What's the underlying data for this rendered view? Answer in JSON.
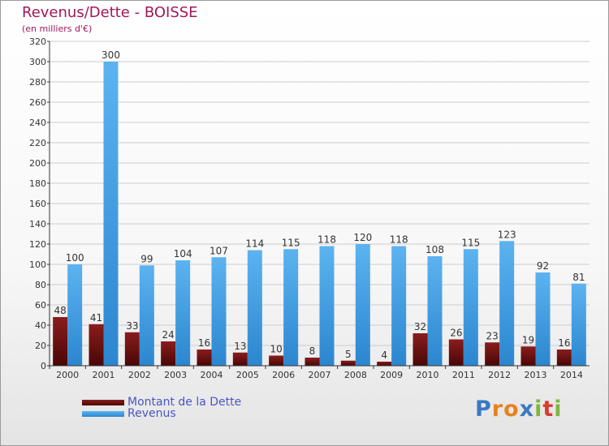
{
  "title": "Revenus/Dette - BOISSE",
  "subtitle": "(en milliers d'€)",
  "colors": {
    "dette": "#6b0c0c",
    "revenus": "#3a9ae0",
    "grid": "#cccccc",
    "axis": "#333333",
    "title": "#a0185a",
    "legend": "#4a56c4"
  },
  "legend": {
    "dette": "Montant de la Dette",
    "revenus": "Revenus"
  },
  "logo": {
    "text": "Proxiti",
    "letters": [
      "P",
      "r",
      "o",
      "x",
      "i",
      "t",
      "i"
    ],
    "colors": [
      "#3b78c4",
      "#e8821e",
      "#e8821e",
      "#3b78c4",
      "#7fb63e",
      "#d93b2f",
      "#7fb63e"
    ]
  },
  "chart_data": {
    "type": "bar",
    "title": "Revenus/Dette - BOISSE",
    "ylabel": "(en milliers d'€)",
    "xlabel": "",
    "ylim": [
      0,
      320
    ],
    "yticks": [
      0,
      20,
      40,
      60,
      80,
      100,
      120,
      140,
      160,
      180,
      200,
      220,
      240,
      260,
      280,
      300,
      320
    ],
    "categories": [
      "2000",
      "2001",
      "2002",
      "2003",
      "2004",
      "2005",
      "2006",
      "2007",
      "2008",
      "2009",
      "2010",
      "2011",
      "2012",
      "2013",
      "2014"
    ],
    "series": [
      {
        "name": "Montant de la Dette",
        "values": [
          48,
          41,
          33,
          24,
          16,
          13,
          10,
          8,
          5,
          4,
          32,
          26,
          23,
          19,
          16
        ]
      },
      {
        "name": "Revenus",
        "values": [
          100,
          300,
          99,
          104,
          107,
          114,
          115,
          118,
          120,
          118,
          108,
          115,
          123,
          92,
          81
        ]
      }
    ],
    "grid": true,
    "legend_position": "bottom-left"
  }
}
